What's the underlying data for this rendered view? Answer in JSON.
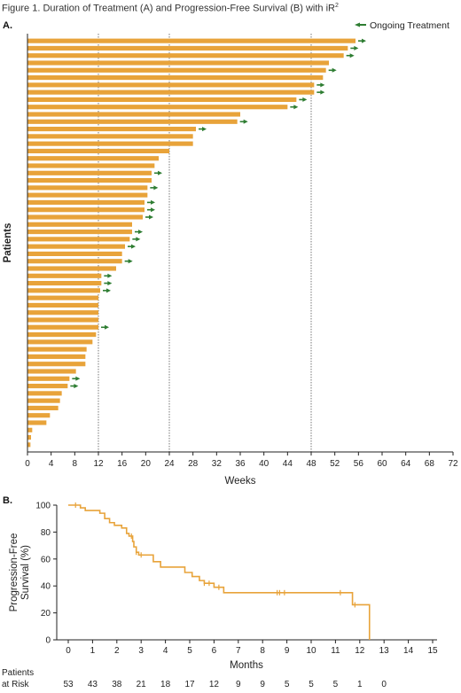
{
  "figure": {
    "title": "Figure 1. Duration of Treatment (A) and Progression-Free Survival (B) with iR",
    "title_superscript": "2"
  },
  "colors": {
    "bar": "#E8A33A",
    "arrow": "#2E7D32",
    "axis": "#222222",
    "ref_line": "#555555"
  },
  "chart_data": [
    {
      "type": "bar",
      "orientation": "horizontal",
      "panel_label": "A.",
      "xlabel": "Weeks",
      "ylabel": "Patients",
      "xlim": [
        0,
        72
      ],
      "xticks": [
        0,
        4,
        8,
        12,
        16,
        20,
        24,
        28,
        32,
        36,
        40,
        44,
        48,
        52,
        56,
        60,
        64,
        68,
        72
      ],
      "reference_lines": [
        12,
        24,
        48
      ],
      "legend": {
        "label": "Ongoing Treatment",
        "position": "top-right",
        "marker": "arrow"
      },
      "values": [
        55.5,
        54.2,
        53.5,
        51,
        50.5,
        50,
        48.5,
        48.5,
        45.5,
        44,
        36,
        35.5,
        28.5,
        28,
        28,
        24,
        22.2,
        21.5,
        21,
        21,
        20.3,
        20.3,
        19.8,
        19.8,
        19.5,
        17.7,
        17.7,
        17.3,
        16.5,
        16,
        16,
        15,
        12.5,
        12.5,
        12.3,
        12,
        12,
        12,
        12,
        12,
        11.6,
        11,
        10,
        9.8,
        9.8,
        8.2,
        7.1,
        6.8,
        5.8,
        5.5,
        5.2,
        3.8,
        3.2,
        0.8,
        0.6,
        0.5
      ],
      "ongoing": [
        true,
        true,
        true,
        false,
        true,
        false,
        true,
        true,
        true,
        true,
        false,
        true,
        true,
        false,
        false,
        false,
        false,
        false,
        true,
        false,
        true,
        false,
        true,
        true,
        true,
        false,
        true,
        true,
        true,
        false,
        true,
        false,
        true,
        true,
        true,
        false,
        false,
        false,
        false,
        true,
        false,
        false,
        false,
        false,
        false,
        false,
        true,
        true,
        false,
        false,
        false,
        false,
        false,
        false,
        false,
        false
      ]
    },
    {
      "type": "line",
      "subtype": "kaplan-meier",
      "panel_label": "B.",
      "xlabel": "Months",
      "ylabel": "Progression-Free Survival (%)",
      "ylabel_lines": [
        "Progression-Free",
        "Survival (%)"
      ],
      "xlim": [
        0,
        15
      ],
      "ylim": [
        0,
        100
      ],
      "xticks": [
        0,
        1,
        2,
        3,
        4,
        5,
        6,
        7,
        8,
        9,
        10,
        11,
        12,
        13,
        14,
        15
      ],
      "yticks": [
        0,
        20,
        40,
        60,
        80,
        100
      ],
      "steps": [
        [
          0,
          100
        ],
        [
          0.5,
          98
        ],
        [
          0.7,
          96
        ],
        [
          1.3,
          94
        ],
        [
          1.5,
          90
        ],
        [
          1.7,
          87
        ],
        [
          1.9,
          85
        ],
        [
          2.2,
          83
        ],
        [
          2.4,
          79
        ],
        [
          2.5,
          77
        ],
        [
          2.65,
          73
        ],
        [
          2.7,
          69
        ],
        [
          2.8,
          65
        ],
        [
          2.9,
          63
        ],
        [
          3.5,
          58
        ],
        [
          3.8,
          54
        ],
        [
          4.8,
          50
        ],
        [
          5.1,
          47
        ],
        [
          5.4,
          44
        ],
        [
          5.6,
          42
        ],
        [
          6.0,
          39
        ],
        [
          6.4,
          35
        ],
        [
          11.7,
          26
        ],
        [
          12.4,
          0
        ]
      ],
      "censored": [
        [
          0.3,
          100
        ],
        [
          2.6,
          77
        ],
        [
          2.8,
          65
        ],
        [
          3.0,
          63
        ],
        [
          5.6,
          42
        ],
        [
          5.8,
          42
        ],
        [
          6.2,
          39
        ],
        [
          8.6,
          35
        ],
        [
          8.7,
          35
        ],
        [
          8.9,
          35
        ],
        [
          11.2,
          35
        ],
        [
          11.8,
          26
        ]
      ],
      "risk_table": {
        "label_lines": [
          "Patients",
          "at Risk"
        ],
        "values": [
          53,
          43,
          38,
          21,
          18,
          17,
          12,
          9,
          9,
          5,
          5,
          5,
          1,
          0
        ]
      }
    }
  ]
}
